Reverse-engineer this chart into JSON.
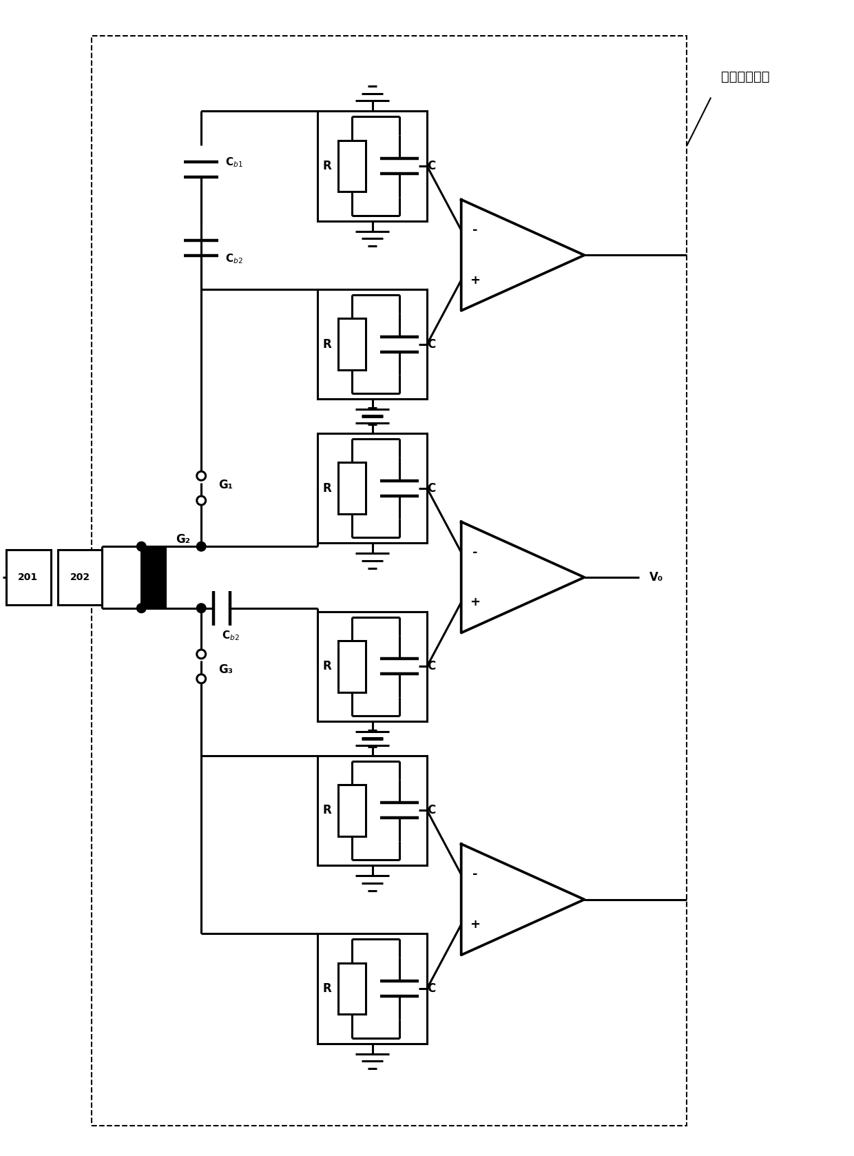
{
  "fig_width": 12.4,
  "fig_height": 16.78,
  "bg_color": "#ffffff",
  "lc": "#000000",
  "lw": 2.2,
  "dlw": 1.5,
  "label_title": "信号处理模块",
  "label_Vo": "V₀",
  "label_201": "201",
  "label_202": "202",
  "label_G1": "G₁",
  "label_G2": "G₂",
  "label_G3": "G₃",
  "label_Cb1": "C₁",
  "label_Cb1_sub": "b1",
  "label_Cb2": "C₂",
  "label_Cb2_sub": "b2",
  "label_R": "R",
  "label_C": "C"
}
